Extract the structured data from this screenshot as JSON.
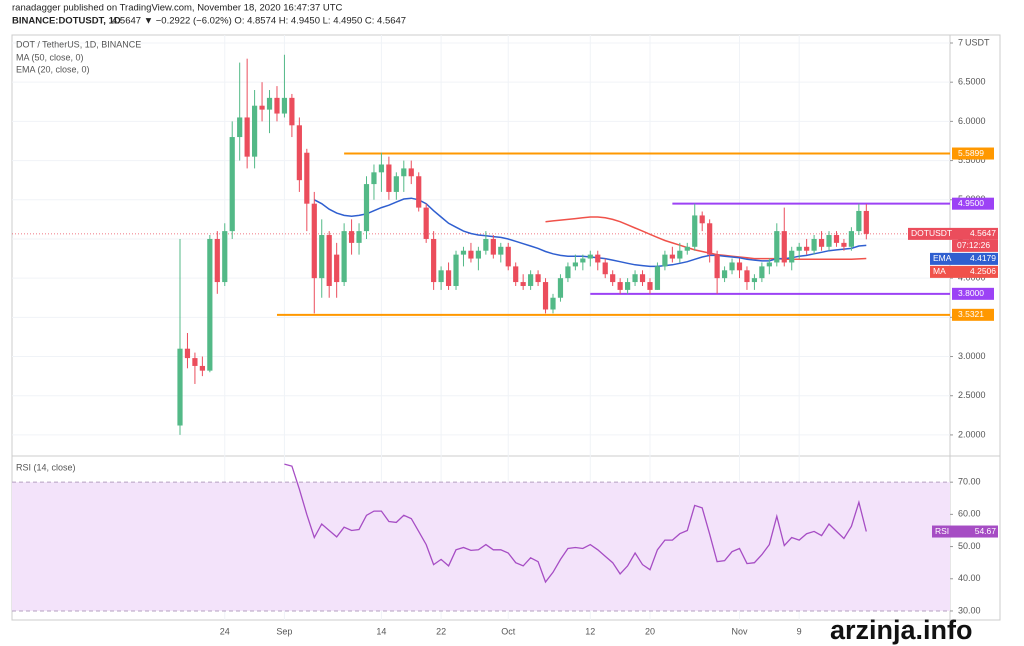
{
  "header": {
    "publisher": "ranadagger published on TradingView.com, November 18, 2020 16:47:37 UTC",
    "symbol": "BINANCE:DOTUSDT, 1D",
    "quote": "4.5647 ▼ −0.2922 (−6.02%) O: 4.8574 H: 4.9450 L: 4.4950 C: 4.5647"
  },
  "watermark": "arzinja.info",
  "chart_data": {
    "type": "candlestick",
    "title": "DOT / TetherUS, 1D, BINANCE",
    "unit": "USDT",
    "up_color": "#53b987",
    "down_color": "#eb4d5c",
    "categories": [
      "2020-08-18",
      "2020-08-19",
      "2020-08-20",
      "2020-08-21",
      "2020-08-22",
      "2020-08-23",
      "2020-08-24",
      "2020-08-25",
      "2020-08-26",
      "2020-08-27",
      "2020-08-28",
      "2020-08-29",
      "2020-08-30",
      "2020-08-31",
      "2020-09-01",
      "2020-09-02",
      "2020-09-03",
      "2020-09-04",
      "2020-09-05",
      "2020-09-06",
      "2020-09-07",
      "2020-09-08",
      "2020-09-09",
      "2020-09-10",
      "2020-09-11",
      "2020-09-12",
      "2020-09-13",
      "2020-09-14",
      "2020-09-15",
      "2020-09-16",
      "2020-09-17",
      "2020-09-18",
      "2020-09-19",
      "2020-09-20",
      "2020-09-21",
      "2020-09-22",
      "2020-09-23",
      "2020-09-24",
      "2020-09-25",
      "2020-09-26",
      "2020-09-27",
      "2020-09-28",
      "2020-09-29",
      "2020-09-30",
      "2020-10-01",
      "2020-10-02",
      "2020-10-03",
      "2020-10-04",
      "2020-10-05",
      "2020-10-06",
      "2020-10-07",
      "2020-10-08",
      "2020-10-09",
      "2020-10-10",
      "2020-10-11",
      "2020-10-12",
      "2020-10-13",
      "2020-10-14",
      "2020-10-15",
      "2020-10-16",
      "2020-10-17",
      "2020-10-18",
      "2020-10-19",
      "2020-10-20",
      "2020-10-21",
      "2020-10-22",
      "2020-10-23",
      "2020-10-24",
      "2020-10-25",
      "2020-10-26",
      "2020-10-27",
      "2020-10-28",
      "2020-10-29",
      "2020-10-30",
      "2020-10-31",
      "2020-11-01",
      "2020-11-02",
      "2020-11-03",
      "2020-11-04",
      "2020-11-05",
      "2020-11-06",
      "2020-11-07",
      "2020-11-08",
      "2020-11-09",
      "2020-11-10",
      "2020-11-11",
      "2020-11-12",
      "2020-11-13",
      "2020-11-14",
      "2020-11-15",
      "2020-11-16",
      "2020-11-17",
      "2020-11-18"
    ],
    "series": [
      {
        "name": "DOTUSDT",
        "open": [
          2.12,
          3.1,
          2.98,
          2.88,
          2.82,
          4.5,
          3.95,
          4.6,
          5.8,
          6.05,
          5.55,
          6.2,
          6.15,
          6.3,
          6.1,
          6.3,
          5.95,
          5.6,
          4.95,
          4.0,
          4.55,
          4.3,
          3.95,
          4.6,
          4.45,
          4.6,
          5.2,
          5.35,
          5.45,
          5.1,
          5.3,
          5.4,
          5.3,
          4.9,
          4.5,
          3.95,
          4.1,
          3.9,
          4.3,
          4.35,
          4.25,
          4.35,
          4.5,
          4.3,
          4.4,
          4.15,
          3.95,
          3.9,
          4.05,
          3.95,
          3.6,
          3.75,
          4.0,
          4.15,
          4.2,
          4.25,
          4.3,
          4.2,
          4.05,
          3.95,
          3.85,
          3.95,
          4.05,
          3.95,
          3.85,
          4.15,
          4.3,
          4.25,
          4.35,
          4.4,
          4.8,
          4.7,
          4.3,
          4.0,
          4.1,
          4.2,
          4.1,
          3.95,
          4.0,
          4.15,
          4.2,
          4.6,
          4.2,
          4.35,
          4.4,
          4.35,
          4.5,
          4.4,
          4.55,
          4.45,
          4.4,
          4.6,
          4.8574
        ],
        "high": [
          4.5,
          3.3,
          3.05,
          3.0,
          4.55,
          4.6,
          4.7,
          6.0,
          6.75,
          6.8,
          6.4,
          6.5,
          6.4,
          6.45,
          6.85,
          6.35,
          6.05,
          5.65,
          5.1,
          4.75,
          4.6,
          4.45,
          4.7,
          4.75,
          4.7,
          5.3,
          5.45,
          5.6,
          5.55,
          5.35,
          5.5,
          5.5,
          5.35,
          4.95,
          4.6,
          4.15,
          4.2,
          4.35,
          4.4,
          4.45,
          4.4,
          4.6,
          4.55,
          4.45,
          4.45,
          4.2,
          4.05,
          4.1,
          4.1,
          4.0,
          3.8,
          4.05,
          4.2,
          4.3,
          4.3,
          4.35,
          4.35,
          4.25,
          4.1,
          4.0,
          4.0,
          4.1,
          4.1,
          4.0,
          4.2,
          4.35,
          4.4,
          4.45,
          4.45,
          4.95,
          4.85,
          4.75,
          4.35,
          4.15,
          4.25,
          4.25,
          4.15,
          4.05,
          4.2,
          4.25,
          4.7,
          4.9,
          4.4,
          4.45,
          4.5,
          4.55,
          4.6,
          4.6,
          4.6,
          4.5,
          4.65,
          4.95,
          4.945
        ],
        "low": [
          2.0,
          2.85,
          2.65,
          2.75,
          2.8,
          3.8,
          3.9,
          4.5,
          5.5,
          5.4,
          5.4,
          6.0,
          5.85,
          6.0,
          6.05,
          5.8,
          5.1,
          4.6,
          3.55,
          3.75,
          3.75,
          3.75,
          3.9,
          4.3,
          4.3,
          4.5,
          5.0,
          5.1,
          5.0,
          5.0,
          5.1,
          5.2,
          4.85,
          4.45,
          3.85,
          3.85,
          3.85,
          3.85,
          4.15,
          4.2,
          4.1,
          4.3,
          4.25,
          4.2,
          4.1,
          3.9,
          3.85,
          3.85,
          3.9,
          3.55,
          3.55,
          3.7,
          3.95,
          4.1,
          4.1,
          4.15,
          4.1,
          4.0,
          3.9,
          3.8,
          3.8,
          3.9,
          3.9,
          3.8,
          3.85,
          4.1,
          4.2,
          4.2,
          4.3,
          4.35,
          4.6,
          4.2,
          3.8,
          3.95,
          4.05,
          4.0,
          3.85,
          3.85,
          3.95,
          4.05,
          4.15,
          4.15,
          4.1,
          4.25,
          4.3,
          4.3,
          4.35,
          4.35,
          4.4,
          4.35,
          4.35,
          4.55,
          4.495
        ],
        "close": [
          3.1,
          2.98,
          2.88,
          2.82,
          4.5,
          3.95,
          4.6,
          5.8,
          6.05,
          5.55,
          6.2,
          6.15,
          6.3,
          6.1,
          6.3,
          5.95,
          5.25,
          4.95,
          4.0,
          4.55,
          3.9,
          3.95,
          4.6,
          4.45,
          4.6,
          5.2,
          5.35,
          5.45,
          5.1,
          5.3,
          5.4,
          5.3,
          4.9,
          4.5,
          3.95,
          4.1,
          3.9,
          4.3,
          4.35,
          4.25,
          4.35,
          4.5,
          4.3,
          4.4,
          4.15,
          3.95,
          3.9,
          4.05,
          3.95,
          3.6,
          3.75,
          4.0,
          4.15,
          4.2,
          4.25,
          4.3,
          4.2,
          4.05,
          3.95,
          3.85,
          3.95,
          4.05,
          3.95,
          3.85,
          4.15,
          4.3,
          4.25,
          4.35,
          4.4,
          4.8,
          4.7,
          4.3,
          4.0,
          4.1,
          4.2,
          4.1,
          3.95,
          4.0,
          4.15,
          4.2,
          4.6,
          4.2,
          4.35,
          4.4,
          4.35,
          4.5,
          4.4,
          4.55,
          4.45,
          4.4,
          4.6,
          4.8574,
          4.5647
        ],
        "tag": "DOTUSDT",
        "countdown": "07:12:26"
      }
    ],
    "indicators": [
      {
        "name": "MA (50, close, 0)",
        "tag": "MA",
        "color": "#f0524a",
        "values": [
          null,
          null,
          null,
          null,
          null,
          null,
          null,
          null,
          null,
          null,
          null,
          null,
          null,
          null,
          null,
          null,
          null,
          null,
          null,
          null,
          null,
          null,
          null,
          null,
          null,
          null,
          null,
          null,
          null,
          null,
          null,
          null,
          null,
          null,
          null,
          null,
          null,
          null,
          null,
          null,
          null,
          null,
          null,
          null,
          null,
          null,
          null,
          null,
          null,
          4.72,
          4.73,
          4.74,
          4.75,
          4.76,
          4.77,
          4.78,
          4.78,
          4.77,
          4.75,
          4.72,
          4.68,
          4.64,
          4.6,
          4.56,
          4.52,
          4.48,
          4.45,
          4.42,
          4.39,
          4.36,
          4.34,
          4.32,
          4.3,
          4.29,
          4.28,
          4.27,
          4.26,
          4.25,
          4.25,
          4.25,
          4.25,
          4.24,
          4.24,
          4.24,
          4.24,
          4.24,
          4.24,
          4.24,
          4.24,
          4.24,
          4.24,
          4.245,
          4.2506
        ]
      },
      {
        "name": "EMA (20, close, 0)",
        "tag": "EMA",
        "color": "#2f5fd0",
        "values": [
          null,
          null,
          null,
          null,
          null,
          null,
          null,
          null,
          null,
          null,
          null,
          null,
          null,
          null,
          null,
          null,
          null,
          null,
          5.0,
          4.95,
          4.88,
          4.83,
          4.8,
          4.79,
          4.8,
          4.82,
          4.86,
          4.9,
          4.93,
          4.97,
          5.01,
          5.02,
          5.0,
          4.95,
          4.86,
          4.78,
          4.7,
          4.65,
          4.6,
          4.57,
          4.55,
          4.54,
          4.53,
          4.52,
          4.5,
          4.47,
          4.44,
          4.41,
          4.38,
          4.34,
          4.31,
          4.29,
          4.28,
          4.28,
          4.28,
          4.27,
          4.26,
          4.25,
          4.23,
          4.21,
          4.19,
          4.17,
          4.16,
          4.15,
          4.15,
          4.16,
          4.17,
          4.19,
          4.21,
          4.24,
          4.27,
          4.29,
          4.29,
          4.28,
          4.27,
          4.26,
          4.24,
          4.23,
          4.22,
          4.22,
          4.25,
          4.25,
          4.26,
          4.28,
          4.29,
          4.31,
          4.33,
          4.35,
          4.36,
          4.37,
          4.38,
          4.41,
          4.4179
        ]
      }
    ],
    "levels": [
      {
        "value": 5.5899,
        "label": "5.5899",
        "color": "#ff9800",
        "from": "2020-09-09"
      },
      {
        "value": 4.95,
        "label": "4.9500",
        "color": "#9c42f5",
        "from": "2020-10-23"
      },
      {
        "value": 3.8,
        "label": "3.8000",
        "color": "#9c42f5",
        "from": "2020-10-12"
      },
      {
        "value": 3.5321,
        "label": "3.5321",
        "color": "#ff9800",
        "from": "2020-08-31"
      }
    ],
    "ylim": [
      1.731,
      7.102
    ],
    "yticks": [
      {
        "value": 2,
        "label": "2.0000"
      },
      {
        "value": 2.5,
        "label": "2.5000"
      },
      {
        "value": 3,
        "label": "3.0000"
      },
      {
        "value": 3.5,
        "label": "3.5000"
      },
      {
        "value": 4,
        "label": "4.0000"
      },
      {
        "value": 4.5,
        "label": "4.5000"
      },
      {
        "value": 5,
        "label": "5.0000"
      },
      {
        "value": 5.5,
        "label": "5.5000"
      },
      {
        "value": 6,
        "label": "6.0000"
      },
      {
        "value": 6.5,
        "label": "6.5000"
      },
      7
    ],
    "xticks": [
      {
        "value": "2020-08-24",
        "label": "24"
      },
      {
        "value": "2020-09-01",
        "label": "Sep"
      },
      {
        "value": "2020-09-14",
        "label": "14"
      },
      {
        "value": "2020-09-22",
        "label": "22"
      },
      {
        "value": "2020-10-01",
        "label": "Oct"
      },
      {
        "value": "2020-10-12",
        "label": "12"
      },
      {
        "value": "2020-10-20",
        "label": "20"
      },
      {
        "value": "2020-11-01",
        "label": "Nov"
      },
      {
        "value": "2020-11-09",
        "label": "9"
      }
    ],
    "grid": true,
    "rsi": {
      "name": "RSI (14, close)",
      "tag": "RSI",
      "color": "#a64dc4",
      "band": [
        30,
        70
      ],
      "band_color": "#f3e3fa",
      "ylim": [
        27.19,
        78.13
      ],
      "yticks": [
        {
          "value": 30,
          "label": "30.00"
        },
        {
          "value": 40,
          "label": "40.00"
        },
        {
          "value": 50,
          "label": "50.00"
        },
        {
          "value": 60,
          "label": "60.00"
        },
        {
          "value": 70,
          "label": "70.00"
        }
      ],
      "values": [
        null,
        null,
        null,
        null,
        null,
        null,
        null,
        null,
        null,
        null,
        null,
        null,
        null,
        null,
        75.6,
        75,
        67.8,
        60,
        52.8,
        57,
        55,
        53,
        56,
        55,
        55.3,
        59.7,
        61,
        61,
        57.8,
        57.5,
        59.7,
        58.7,
        54.7,
        50.6,
        44.4,
        46,
        44,
        49,
        49.7,
        48.8,
        49,
        50.6,
        49,
        49,
        48,
        45,
        44,
        46.5,
        45.3,
        39,
        42,
        46,
        49.4,
        49.7,
        49.4,
        50.6,
        49,
        47,
        45,
        41.5,
        44,
        48,
        44.4,
        42.8,
        49,
        52,
        52,
        54,
        55,
        62.8,
        62,
        53.8,
        45.3,
        45.6,
        48.4,
        49.4,
        44.7,
        45,
        47.5,
        50.6,
        59.4,
        50.3,
        52.8,
        52,
        54,
        54.7,
        53.4,
        57,
        54.7,
        52.5,
        56.3,
        63.75,
        54.67
      ]
    }
  }
}
